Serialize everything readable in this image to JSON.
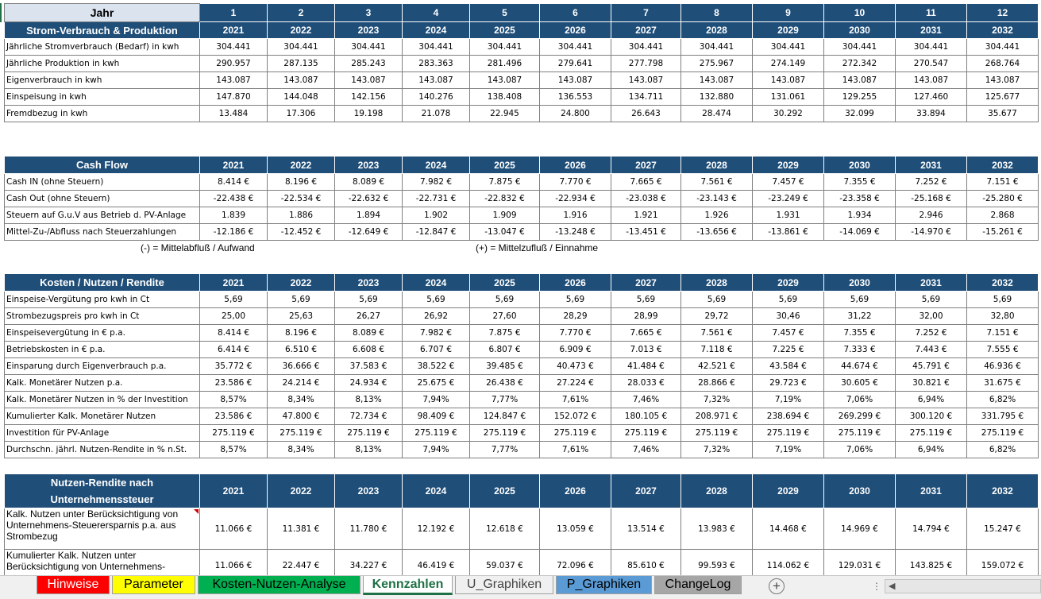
{
  "sheet": {
    "header": {
      "jahr_label": "Jahr",
      "section_label": "Strom-Verbrauch & Produktion",
      "indices": [
        "1",
        "2",
        "3",
        "4",
        "5",
        "6",
        "7",
        "8",
        "9",
        "10",
        "11",
        "12"
      ],
      "years": [
        "2021",
        "2022",
        "2023",
        "2024",
        "2025",
        "2026",
        "2027",
        "2028",
        "2029",
        "2030",
        "2031",
        "2032"
      ]
    },
    "strom": [
      {
        "label": "Jährliche Stromverbrauch (Bedarf) in kwh",
        "values": [
          "304.441",
          "304.441",
          "304.441",
          "304.441",
          "304.441",
          "304.441",
          "304.441",
          "304.441",
          "304.441",
          "304.441",
          "304.441",
          "304.441"
        ]
      },
      {
        "label": "Jährliche Produktion in kwh",
        "values": [
          "290.957",
          "287.135",
          "285.243",
          "283.363",
          "281.496",
          "279.641",
          "277.798",
          "275.967",
          "274.149",
          "272.342",
          "270.547",
          "268.764"
        ]
      },
      {
        "label": "Eigenverbrauch in kwh",
        "values": [
          "143.087",
          "143.087",
          "143.087",
          "143.087",
          "143.087",
          "143.087",
          "143.087",
          "143.087",
          "143.087",
          "143.087",
          "143.087",
          "143.087"
        ]
      },
      {
        "label": "Einspeisung in kwh",
        "values": [
          "147.870",
          "144.048",
          "142.156",
          "140.276",
          "138.408",
          "136.553",
          "134.711",
          "132.880",
          "131.061",
          "129.255",
          "127.460",
          "125.677"
        ]
      },
      {
        "label": "Fremdbezug in kwh",
        "values": [
          "13.484",
          "17.306",
          "19.198",
          "21.078",
          "22.945",
          "24.800",
          "26.643",
          "28.474",
          "30.292",
          "32.099",
          "33.894",
          "35.677"
        ]
      }
    ],
    "cashflow": {
      "title": "Cash Flow",
      "years": [
        "2021",
        "2022",
        "2023",
        "2024",
        "2025",
        "2026",
        "2027",
        "2028",
        "2029",
        "2030",
        "2031",
        "2032"
      ],
      "rows": [
        {
          "label": "Cash IN (ohne Steuern)",
          "values": [
            "8.414 €",
            "8.196 €",
            "8.089 €",
            "7.982 €",
            "7.875 €",
            "7.770 €",
            "7.665 €",
            "7.561 €",
            "7.457 €",
            "7.355 €",
            "7.252 €",
            "7.151 €"
          ]
        },
        {
          "label": "Cash Out (ohne Steuern)",
          "values": [
            "-22.438 €",
            "-22.534 €",
            "-22.632 €",
            "-22.731 €",
            "-22.832 €",
            "-22.934 €",
            "-23.038 €",
            "-23.143 €",
            "-23.249 €",
            "-23.358 €",
            "-25.168 €",
            "-25.280 €"
          ]
        },
        {
          "label": "Steuern auf G.u.V aus Betrieb d. PV-Anlage",
          "values": [
            "1.839",
            "1.886",
            "1.894",
            "1.902",
            "1.909",
            "1.916",
            "1.921",
            "1.926",
            "1.931",
            "1.934",
            "2.946",
            "2.868"
          ]
        },
        {
          "label": "Mittel-Zu-/Abfluss nach Steuerzahlungen",
          "values": [
            "-12.186 €",
            "-12.452 €",
            "-12.649 €",
            "-12.847 €",
            "-13.047 €",
            "-13.248 €",
            "-13.451 €",
            "-13.656 €",
            "-13.861 €",
            "-14.069 €",
            "-14.970 €",
            "-15.261 €"
          ]
        }
      ],
      "note_minus": "(-) = Mittelabfluß / Aufwand",
      "note_plus": "(+) = Mittelzufluß / Einnahme"
    },
    "kosten": {
      "title": "Kosten / Nutzen / Rendite",
      "years": [
        "2021",
        "2022",
        "2023",
        "2024",
        "2025",
        "2026",
        "2027",
        "2028",
        "2029",
        "2030",
        "2031",
        "2032"
      ],
      "rows": [
        {
          "label": "Einspeise-Vergütung pro kwh in Ct",
          "values": [
            "5,69",
            "5,69",
            "5,69",
            "5,69",
            "5,69",
            "5,69",
            "5,69",
            "5,69",
            "5,69",
            "5,69",
            "5,69",
            "5,69"
          ]
        },
        {
          "label": "Strombezugspreis pro kwh in Ct",
          "values": [
            "25,00",
            "25,63",
            "26,27",
            "26,92",
            "27,60",
            "28,29",
            "28,99",
            "29,72",
            "30,46",
            "31,22",
            "32,00",
            "32,80"
          ]
        },
        {
          "label": "Einspeisevergütung in € p.a.",
          "values": [
            "8.414 €",
            "8.196 €",
            "8.089 €",
            "7.982 €",
            "7.875 €",
            "7.770 €",
            "7.665 €",
            "7.561 €",
            "7.457 €",
            "7.355 €",
            "7.252 €",
            "7.151 €"
          ]
        },
        {
          "label": "Betriebskosten in € p.a.",
          "values": [
            "6.414 €",
            "6.510 €",
            "6.608 €",
            "6.707 €",
            "6.807 €",
            "6.909 €",
            "7.013 €",
            "7.118 €",
            "7.225 €",
            "7.333 €",
            "7.443 €",
            "7.555 €"
          ]
        },
        {
          "label": "Einsparung durch Eigenverbrauch p.a.",
          "values": [
            "35.772 €",
            "36.666 €",
            "37.583 €",
            "38.522 €",
            "39.485 €",
            "40.473 €",
            "41.484 €",
            "42.521 €",
            "43.584 €",
            "44.674 €",
            "45.791 €",
            "46.936 €"
          ]
        },
        {
          "label": "Kalk. Monetärer Nutzen p.a.",
          "values": [
            "23.586 €",
            "24.214 €",
            "24.934 €",
            "25.675 €",
            "26.438 €",
            "27.224 €",
            "28.033 €",
            "28.866 €",
            "29.723 €",
            "30.605 €",
            "30.821 €",
            "31.675 €"
          ]
        },
        {
          "label": "Kalk. Monetärer Nutzen in % der Investition",
          "values": [
            "8,57%",
            "8,34%",
            "8,13%",
            "7,94%",
            "7,77%",
            "7,61%",
            "7,46%",
            "7,32%",
            "7,19%",
            "7,06%",
            "6,94%",
            "6,82%"
          ]
        },
        {
          "label": "Kumulierter Kalk. Monetärer Nutzen",
          "values": [
            "23.586 €",
            "47.800 €",
            "72.734 €",
            "98.409 €",
            "124.847 €",
            "152.072 €",
            "180.105 €",
            "208.971 €",
            "238.694 €",
            "269.299 €",
            "300.120 €",
            "331.795 €"
          ]
        },
        {
          "label": "Investition für PV-Anlage",
          "values": [
            "275.119 €",
            "275.119 €",
            "275.119 €",
            "275.119 €",
            "275.119 €",
            "275.119 €",
            "275.119 €",
            "275.119 €",
            "275.119 €",
            "275.119 €",
            "275.119 €",
            "275.119 €"
          ]
        },
        {
          "label": "Durchschn. jährl. Nutzen-Rendite in % n.St.",
          "values": [
            "8,57%",
            "8,34%",
            "8,13%",
            "7,94%",
            "7,77%",
            "7,61%",
            "7,46%",
            "7,32%",
            "7,19%",
            "7,06%",
            "6,94%",
            "6,82%"
          ]
        }
      ]
    },
    "nutzen": {
      "title": "Nutzen-Rendite nach Unternehmenssteuer",
      "years": [
        "2021",
        "2022",
        "2023",
        "2024",
        "2025",
        "2026",
        "2027",
        "2028",
        "2029",
        "2030",
        "2031",
        "2032"
      ],
      "rows": [
        {
          "label": "Kalk. Nutzen unter Berücksichtigung von Unternehmens-Steuerersparnis p.a. aus Strombezug",
          "values": [
            "11.066 €",
            "11.381 €",
            "11.780 €",
            "12.192 €",
            "12.618 €",
            "13.059 €",
            "13.514 €",
            "13.983 €",
            "14.468 €",
            "14.969 €",
            "14.794 €",
            "15.247 €"
          ]
        },
        {
          "label": "Kumulierter Kalk. Nutzen unter Berücksichtigung von Unternehmens-",
          "values": [
            "11.066 €",
            "22.447 €",
            "34.227 €",
            "46.419 €",
            "59.037 €",
            "72.096 €",
            "85.610 €",
            "99.593 €",
            "114.062 €",
            "129.031 €",
            "143.825 €",
            "159.072 €"
          ]
        }
      ]
    }
  },
  "tabs": [
    {
      "label": "Hinweise",
      "bg": "#ff0000",
      "fg": "#ffffff"
    },
    {
      "label": "Parameter",
      "bg": "#ffff00",
      "fg": "#000000"
    },
    {
      "label": "Kosten-Nutzen-Analyse",
      "bg": "#00b050",
      "fg": "#000000"
    },
    {
      "label": "Kennzahlen",
      "bg": "#ffffff",
      "fg": "#1e7145"
    },
    {
      "label": "U_Graphiken",
      "bg": "#f0f0f0",
      "fg": "#444444"
    },
    {
      "label": "P_Graphiken",
      "bg": "#5b9bd5",
      "fg": "#000000"
    },
    {
      "label": "ChangeLog",
      "bg": "#a6a6a6",
      "fg": "#000000"
    }
  ],
  "tabbar": {
    "add_icon": "plus-circle-icon",
    "add_label": "+",
    "vdots": "⋮",
    "left_arrow": "◀"
  },
  "colors": {
    "header_bg": "#1f4e78",
    "jahr_bg": "#dbe3ee",
    "active_tab": "#1e7145",
    "comment_flag": "#d00000"
  }
}
